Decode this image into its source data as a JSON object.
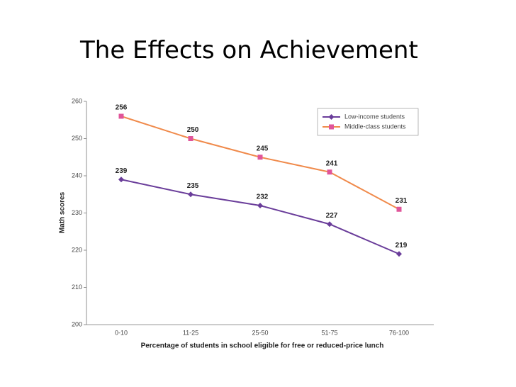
{
  "chart_data": {
    "type": "line",
    "title": "The Effects on Achievement",
    "y_label": "Math scores",
    "x_label": "Percentage of students in school eligible for free or reduced-price lunch",
    "categories": [
      "0-10",
      "11-25",
      "25-50",
      "51-75",
      "76-100"
    ],
    "series": [
      {
        "name": "Low-income students",
        "color": "#6a3d9a",
        "marker": "diamond",
        "values": [
          239,
          235,
          232,
          227,
          219
        ]
      },
      {
        "name": "Middle-class students",
        "color": "#f08a4b",
        "marker_color": "#e0559a",
        "marker": "square",
        "values": [
          256,
          250,
          245,
          241,
          231
        ]
      }
    ],
    "ylim": [
      200,
      260
    ],
    "yticks": [
      200,
      210,
      220,
      230,
      240,
      250,
      260
    ],
    "legend": "top-right"
  }
}
